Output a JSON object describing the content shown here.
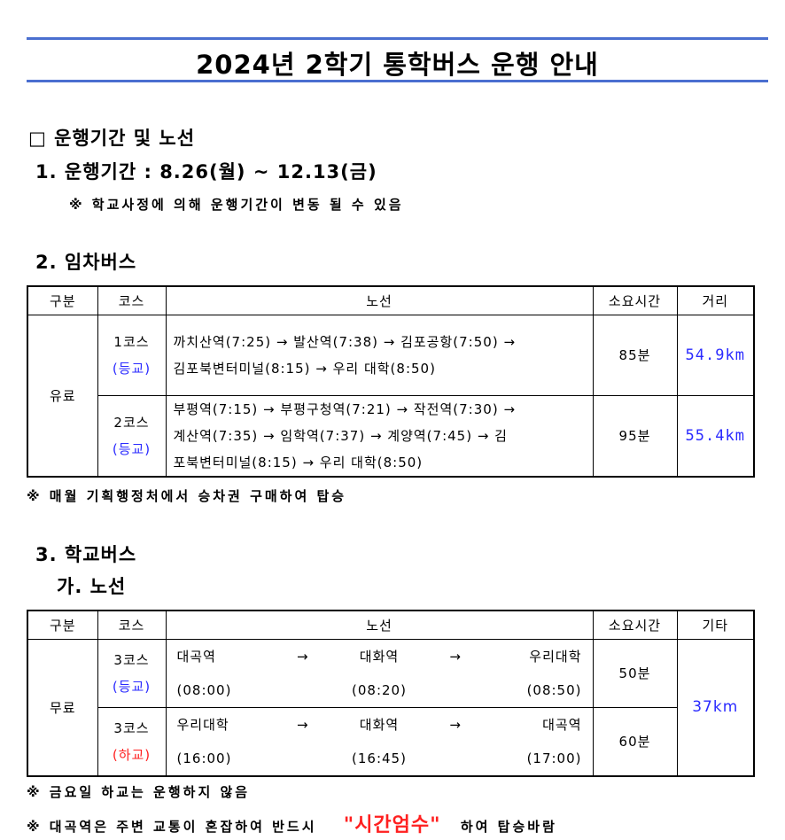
{
  "title": "2024년 2학기 통학버스 운행 안내",
  "section_heading": "□ 운행기간 및 노선",
  "period": {
    "heading": "1. 운행기간 : 8.26(월) ~ 12.13(금)",
    "note": "※ 학교사정에 의해 운행기간이 변동 될 수 있음"
  },
  "charter_bus": {
    "heading": "2. 임차버스",
    "headers": [
      "구분",
      "코스",
      "노선",
      "소요시간",
      "거리"
    ],
    "category": "유료",
    "rows": [
      {
        "course": "1코스",
        "type": "(등교)",
        "route_line1": "까치산역(7:25) → 발산역(7:38) → 김포공항(7:50) →",
        "route_line2": "김포북변터미널(8:15) → 우리 대학(8:50)",
        "route_line3": "",
        "duration": "85분",
        "distance": "54.9km"
      },
      {
        "course": "2코스",
        "type": "(등교)",
        "route_line1": "부평역(7:15) → 부평구청역(7:21) → 작전역(7:30) →",
        "route_line2": "계산역(7:35) → 임학역(7:37) → 계양역(7:45) → 김",
        "route_line3": "포북변터미널(8:15) → 우리 대학(8:50)",
        "duration": "95분",
        "distance": "55.4km"
      }
    ],
    "note": "※ 매월 기획행정처에서 승차권 구매하여 탑승"
  },
  "school_bus": {
    "heading": "3. 학교버스",
    "subheading": "가. 노선",
    "headers": [
      "구분",
      "코스",
      "노선",
      "소요시간",
      "기타"
    ],
    "category": "무료",
    "etc": "37km",
    "rows": [
      {
        "course": "3코스",
        "type": "(등교)",
        "stops": [
          "대곡역",
          "대화역",
          "우리대학"
        ],
        "times": [
          "(08:00)",
          "(08:20)",
          "(08:50)"
        ],
        "duration": "50분"
      },
      {
        "course": "3코스",
        "type": "(하교)",
        "stops": [
          "우리대학",
          "대화역",
          "대곡역"
        ],
        "times": [
          "(16:00)",
          "(16:45)",
          "(17:00)"
        ],
        "duration": "60분"
      }
    ],
    "arrow": "→",
    "note1": "※ 금요일 하교는 운행하지 않음",
    "note2_prefix": "※ 대곡역은 주변 교통이 혼잡하여 반드시",
    "note2_emphasis": "\"시간엄수\"",
    "note2_suffix": "하여 탑승바람"
  },
  "colors": {
    "title_rule": "#4a6fd0",
    "commute_in": "#2b2bff",
    "commute_out": "#ff2020",
    "emphasis": "#ff0000"
  }
}
